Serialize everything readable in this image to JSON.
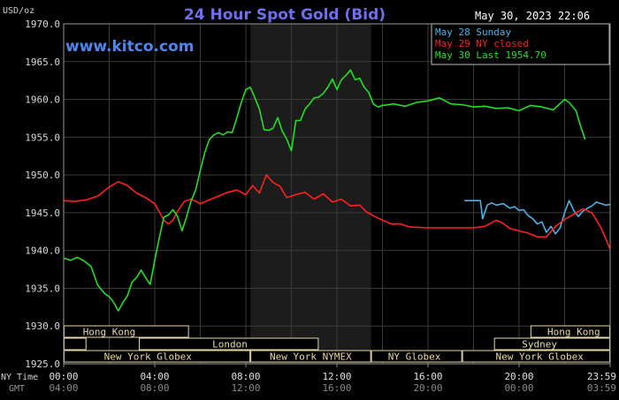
{
  "chart_data": {
    "type": "line",
    "title": "24 Hour Spot Gold (Bid)",
    "units_label": "USD/oz",
    "timestamp": "May 30, 2023 22:06",
    "watermark": "www.kitco.com",
    "ylim": [
      1925,
      1970
    ],
    "yticks": [
      "1970.0",
      "1965.0",
      "1960.0",
      "1955.0",
      "1950.0",
      "1945.0",
      "1940.0",
      "1935.0",
      "1930.0",
      "1925.0"
    ],
    "xlim": [
      0,
      24
    ],
    "xtick_hours": [
      0,
      4,
      8,
      12,
      16,
      20,
      24
    ],
    "xticks_ny": [
      "00:00",
      "04:00",
      "08:00",
      "12:00",
      "16:00",
      "20:00",
      "23:59"
    ],
    "xticks_gmt": [
      "04:00",
      "08:00",
      "12:00",
      "16:00",
      "20:00",
      "00:00",
      "03:59"
    ],
    "row_label_ny": "NY Time",
    "row_label_gmt": "GMT",
    "highlight_hours": [
      8.2,
      13.5
    ],
    "colors": {
      "sunday": "#49b3e8",
      "closed": "#ff2020",
      "last": "#22e022",
      "title": "#6e6ef0",
      "sessions": "#e8d9a6"
    },
    "series": [
      {
        "name": "May 28 Sunday",
        "color": "#49b3e8",
        "x": [
          17.6,
          18.0,
          18.3,
          18.4,
          18.6,
          18.8,
          19.0,
          19.3,
          19.6,
          19.8,
          20.0,
          20.2,
          20.4,
          20.6,
          20.8,
          21.0,
          21.2,
          21.4,
          21.6,
          21.8,
          22.0,
          22.2,
          22.4,
          22.6,
          22.8,
          23.0,
          23.2,
          23.4,
          23.6,
          23.8,
          24.0
        ],
        "y": [
          1946.6,
          1946.6,
          1946.6,
          1944.2,
          1946.0,
          1946.3,
          1946.0,
          1946.2,
          1945.6,
          1945.8,
          1945.3,
          1945.4,
          1944.6,
          1944.2,
          1943.5,
          1943.8,
          1942.4,
          1943.2,
          1942.2,
          1943.0,
          1945.0,
          1946.6,
          1945.3,
          1944.5,
          1945.2,
          1945.6,
          1945.9,
          1946.4,
          1946.2,
          1946.0,
          1946.1
        ]
      },
      {
        "name": "May 29 NY closed",
        "color": "#ff2020",
        "x": [
          0.0,
          0.5,
          1.0,
          1.5,
          2.0,
          2.4,
          2.8,
          3.2,
          3.6,
          4.0,
          4.2,
          4.4,
          4.6,
          4.8,
          5.0,
          5.3,
          5.6,
          6.0,
          6.4,
          6.8,
          7.2,
          7.6,
          8.0,
          8.3,
          8.6,
          8.9,
          9.2,
          9.5,
          9.8,
          10.2,
          10.6,
          11.0,
          11.4,
          11.8,
          12.2,
          12.6,
          13.0,
          13.3,
          13.6,
          14.0,
          14.4,
          14.8,
          15.2,
          16.0,
          17.0,
          18.0,
          18.5,
          19.0,
          19.3,
          19.6,
          20.0,
          20.4,
          20.8,
          21.2,
          21.6,
          22.0,
          22.4,
          22.8,
          23.2,
          23.6,
          24.0
        ],
        "y": [
          1946.6,
          1946.5,
          1946.7,
          1947.2,
          1948.4,
          1949.1,
          1948.6,
          1947.6,
          1947.0,
          1946.2,
          1945.1,
          1944.0,
          1943.5,
          1944.0,
          1945.2,
          1946.5,
          1946.8,
          1946.2,
          1946.7,
          1947.2,
          1947.7,
          1948.0,
          1947.4,
          1948.6,
          1947.6,
          1950.0,
          1949.0,
          1948.5,
          1947.0,
          1947.4,
          1947.7,
          1946.8,
          1947.5,
          1946.4,
          1946.8,
          1945.9,
          1946.0,
          1945.1,
          1944.6,
          1944.0,
          1943.5,
          1943.5,
          1943.1,
          1943.0,
          1943.0,
          1943.0,
          1943.2,
          1944.0,
          1943.6,
          1942.9,
          1942.6,
          1942.3,
          1941.8,
          1941.8,
          1943.2,
          1944.1,
          1944.8,
          1945.5,
          1945.0,
          1943.0,
          1940.2
        ]
      },
      {
        "name": "May 30 Last 1954.70",
        "color": "#22e022",
        "x": [
          0.0,
          0.3,
          0.6,
          0.9,
          1.2,
          1.5,
          1.8,
          2.0,
          2.2,
          2.4,
          2.6,
          2.8,
          3.0,
          3.2,
          3.4,
          3.6,
          3.8,
          4.0,
          4.2,
          4.4,
          4.6,
          4.8,
          5.0,
          5.2,
          5.4,
          5.6,
          5.8,
          6.0,
          6.2,
          6.4,
          6.6,
          6.8,
          7.0,
          7.2,
          7.4,
          7.6,
          7.8,
          8.0,
          8.2,
          8.4,
          8.6,
          8.8,
          9.0,
          9.2,
          9.4,
          9.6,
          9.8,
          10.0,
          10.2,
          10.4,
          10.6,
          10.8,
          11.0,
          11.2,
          11.4,
          11.6,
          11.8,
          12.0,
          12.2,
          12.4,
          12.6,
          12.8,
          13.0,
          13.2,
          13.4,
          13.6,
          13.8,
          14.0,
          14.5,
          15.0,
          15.5,
          16.0,
          16.5,
          17.0,
          17.5,
          18.0,
          18.5,
          19.0,
          19.5,
          20.0,
          20.5,
          21.0,
          21.5,
          22.0,
          22.2,
          22.5,
          22.7,
          22.9
        ],
        "y": [
          1939.0,
          1938.7,
          1939.1,
          1938.6,
          1937.9,
          1935.4,
          1934.3,
          1933.9,
          1933.1,
          1932.0,
          1933.1,
          1934.0,
          1935.8,
          1936.4,
          1937.4,
          1936.4,
          1935.5,
          1938.7,
          1941.7,
          1944.4,
          1944.7,
          1945.4,
          1944.5,
          1942.6,
          1944.5,
          1946.6,
          1948.0,
          1950.6,
          1953.0,
          1954.7,
          1955.3,
          1955.6,
          1955.3,
          1955.7,
          1955.6,
          1957.5,
          1959.6,
          1961.3,
          1961.6,
          1960.2,
          1958.7,
          1956.0,
          1955.9,
          1956.2,
          1957.6,
          1955.8,
          1954.7,
          1953.2,
          1957.2,
          1957.2,
          1958.7,
          1959.4,
          1960.2,
          1960.3,
          1960.8,
          1961.6,
          1962.7,
          1961.3,
          1962.6,
          1963.2,
          1963.9,
          1962.6,
          1962.8,
          1961.6,
          1960.9,
          1959.4,
          1959.0,
          1959.2,
          1959.4,
          1959.1,
          1959.6,
          1959.8,
          1960.2,
          1959.4,
          1959.3,
          1959.0,
          1959.1,
          1958.8,
          1958.9,
          1958.5,
          1959.2,
          1959.0,
          1958.6,
          1960.0,
          1959.6,
          1958.5,
          1956.5,
          1954.7
        ]
      }
    ],
    "legend": {
      "position": "top-right",
      "entries": [
        "May 28 Sunday",
        "May 29 NY closed",
        "May 30 Last 1954.70"
      ]
    },
    "sessions": [
      {
        "label": "Hong Kong",
        "start": 0.0,
        "end": 5.5,
        "row": 1,
        "label_at": 2.0
      },
      {
        "label": "London",
        "start": 3.3,
        "end": 11.2,
        "row": 2,
        "label_at": 7.3
      },
      {
        "label": "",
        "start": 0.0,
        "end": 1.0,
        "row": 2,
        "label_at": 0.5
      },
      {
        "label": "New York Globex",
        "start": 0.0,
        "end": 8.2,
        "row": 3,
        "label_at": 3.7
      },
      {
        "label": "New York NYMEX",
        "start": 8.2,
        "end": 13.5,
        "row": 3,
        "label_at": 10.85
      },
      {
        "label": "NY Globex",
        "start": 13.5,
        "end": 17.5,
        "row": 3,
        "label_at": 15.4
      },
      {
        "label": "Hong Kong",
        "start": 20.5,
        "end": 24.0,
        "row": 1,
        "label_at": 22.4
      },
      {
        "label": "Sydney",
        "start": 18.9,
        "end": 24.0,
        "row": 2,
        "label_at": 20.9
      },
      {
        "label": "New York Globex",
        "start": 17.5,
        "end": 24.0,
        "row": 3,
        "label_at": 20.9
      }
    ]
  }
}
